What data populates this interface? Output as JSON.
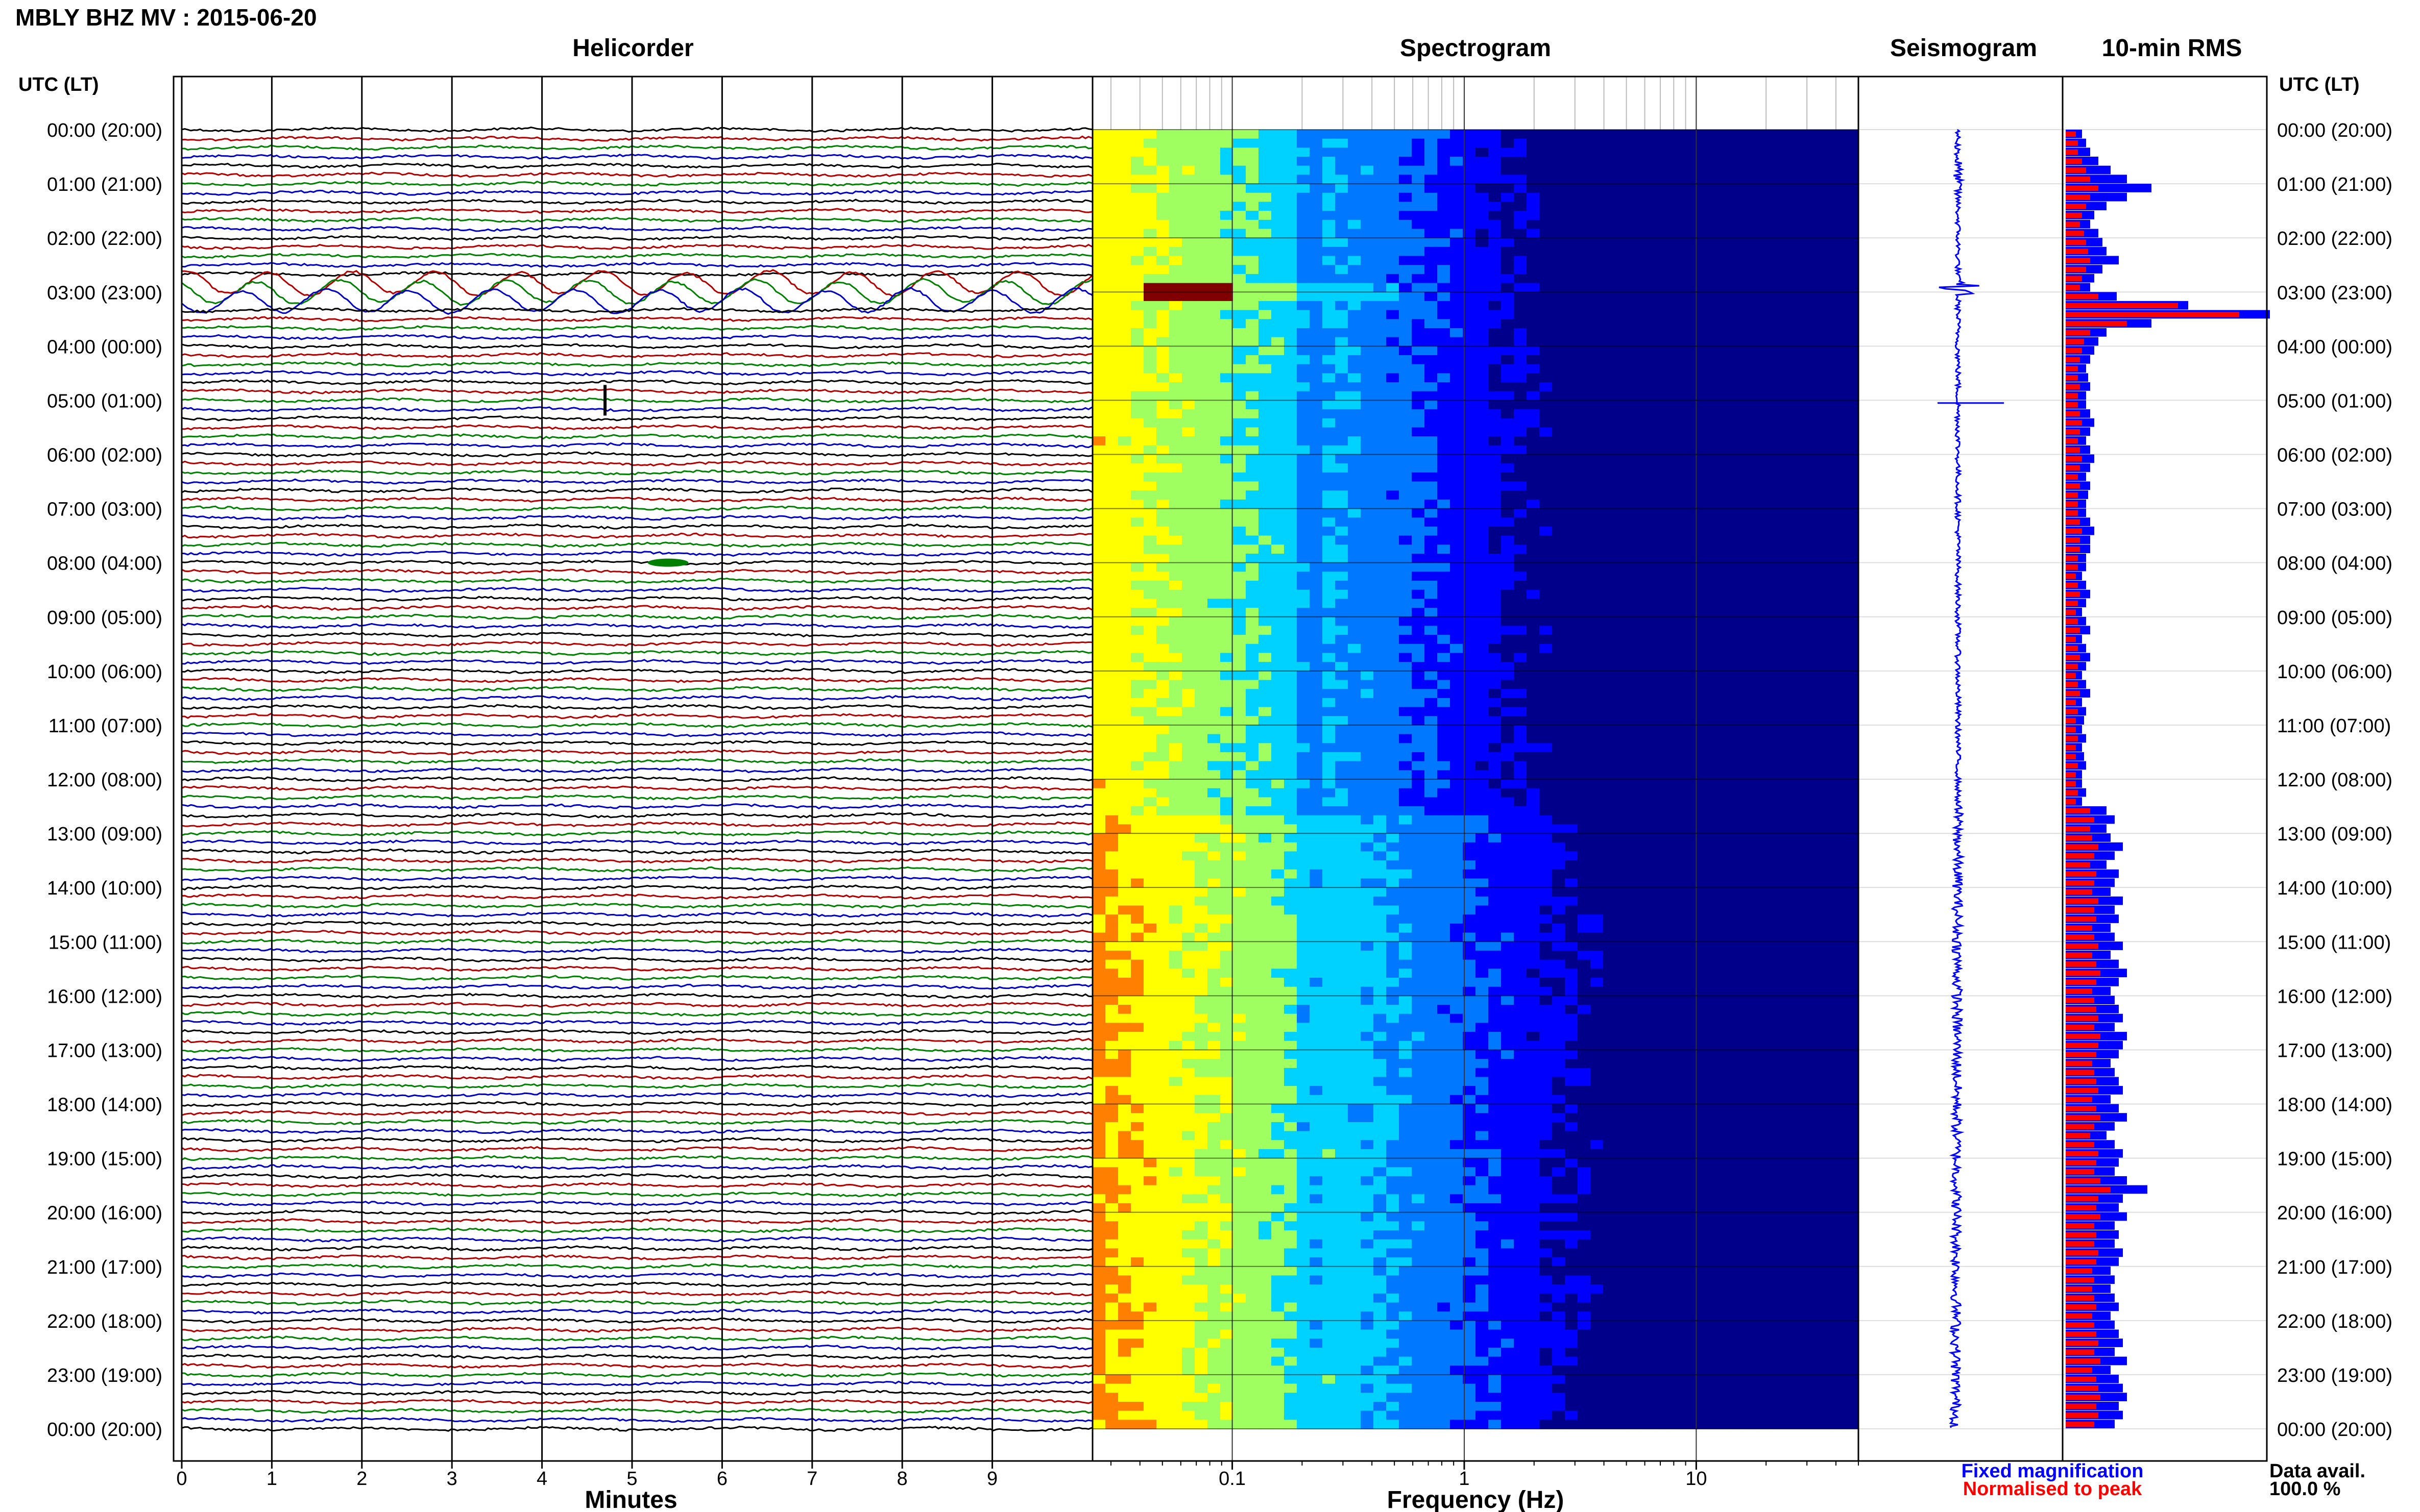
{
  "header": {
    "station_title": "MBLY BHZ MV : 2015-06-20"
  },
  "panels": {
    "helicorder": "Helicorder",
    "spectrogram": "Spectrogram",
    "seismogram": "Seismogram",
    "rms": "10-min RMS"
  },
  "axis": {
    "left_header": "UTC (LT)",
    "right_header": "UTC (LT)",
    "helicorder_xlabel": "Minutes",
    "spectrogram_xlabel": "Frequency (Hz)"
  },
  "legend": {
    "fixed": "Fixed magnification",
    "normalised": "Normalised to peak",
    "fixed_color": "#0000ff",
    "normalised_color": "#ff0000"
  },
  "data_avail": {
    "label": "Data avail.",
    "value": "100.0 %"
  },
  "colors": {
    "trace_cycle": [
      "#000000",
      "#b00000",
      "#008000",
      "#0000c0"
    ],
    "spectrogram_colormap": [
      "#00008b",
      "#0000ff",
      "#0078ff",
      "#00d2ff",
      "#a0ff60",
      "#ffff00",
      "#ff8000",
      "#ff0000",
      "#800000"
    ]
  },
  "chart_data": {
    "type": "heatmap",
    "title": "MBLY BHZ MV : 2015-06-20",
    "time_rows": {
      "utc": [
        "00:00",
        "01:00",
        "02:00",
        "03:00",
        "04:00",
        "05:00",
        "06:00",
        "07:00",
        "08:00",
        "09:00",
        "10:00",
        "11:00",
        "12:00",
        "13:00",
        "14:00",
        "15:00",
        "16:00",
        "17:00",
        "18:00",
        "19:00",
        "20:00",
        "21:00",
        "22:00",
        "23:00",
        "00:00"
      ],
      "lt": [
        "(20:00)",
        "(21:00)",
        "(22:00)",
        "(23:00)",
        "(00:00)",
        "(01:00)",
        "(02:00)",
        "(03:00)",
        "(04:00)",
        "(05:00)",
        "(06:00)",
        "(07:00)",
        "(08:00)",
        "(09:00)",
        "(10:00)",
        "(11:00)",
        "(12:00)",
        "(13:00)",
        "(14:00)",
        "(15:00)",
        "(16:00)",
        "(17:00)",
        "(18:00)",
        "(19:00)",
        "(20:00)"
      ]
    },
    "helicorder": {
      "xlabel": "Minutes",
      "xlim": [
        0,
        10
      ],
      "ticks": [
        "0",
        "1",
        "2",
        "3",
        "4",
        "5",
        "6",
        "7",
        "8",
        "9"
      ],
      "lines_per_hour": 6,
      "events": [
        {
          "time_utc": "02:50-03:10",
          "minute_range": [
            0,
            10
          ],
          "description_on_plot": "large long-period oscillation"
        },
        {
          "time_utc": "04:50",
          "minute": 4.7
        },
        {
          "time_utc": "07:50",
          "minute": 5.4
        }
      ]
    },
    "spectrogram": {
      "xlabel": "Frequency (Hz)",
      "xscale": "log",
      "xlim": [
        0.025,
        50
      ],
      "ticks": [
        "0.1",
        "1",
        "10"
      ],
      "peak_energy": {
        "time_utc": "02:50-03:00",
        "frequency_hz": [
          0.04,
          0.1
        ]
      }
    },
    "rms": {
      "title": "10-min RMS",
      "series": [
        {
          "name": "Fixed magnification",
          "color": "#0000ff",
          "values": [
            0.08,
            0.1,
            0.12,
            0.16,
            0.22,
            0.3,
            0.42,
            0.3,
            0.2,
            0.14,
            0.12,
            0.16,
            0.18,
            0.2,
            0.26,
            0.18,
            0.14,
            0.12,
            0.25,
            0.6,
            1.0,
            0.42,
            0.2,
            0.16,
            0.14,
            0.12,
            0.1,
            0.11,
            0.12,
            0.1,
            0.1,
            0.12,
            0.14,
            0.12,
            0.1,
            0.12,
            0.14,
            0.12,
            0.1,
            0.12,
            0.11,
            0.1,
            0.1,
            0.12,
            0.14,
            0.12,
            0.12,
            0.1,
            0.1,
            0.08,
            0.1,
            0.12,
            0.1,
            0.08,
            0.1,
            0.12,
            0.08,
            0.1,
            0.12,
            0.1,
            0.08,
            0.1,
            0.12,
            0.08,
            0.1,
            0.09,
            0.08,
            0.1,
            0.08,
            0.09,
            0.1,
            0.08,
            0.08,
            0.1,
            0.08,
            0.2,
            0.24,
            0.2,
            0.22,
            0.28,
            0.24,
            0.2,
            0.26,
            0.24,
            0.22,
            0.28,
            0.24,
            0.26,
            0.22,
            0.24,
            0.28,
            0.22,
            0.26,
            0.3,
            0.26,
            0.22,
            0.24,
            0.26,
            0.28,
            0.24,
            0.3,
            0.28,
            0.26,
            0.22,
            0.24,
            0.26,
            0.28,
            0.22,
            0.26,
            0.3,
            0.24,
            0.2,
            0.24,
            0.28,
            0.26,
            0.24,
            0.3,
            0.4,
            0.28,
            0.26,
            0.3,
            0.24,
            0.26,
            0.24,
            0.28,
            0.26,
            0.22,
            0.24,
            0.22,
            0.24,
            0.26,
            0.22,
            0.24,
            0.26,
            0.28,
            0.24,
            0.3,
            0.22,
            0.26,
            0.28,
            0.3,
            0.26,
            0.28,
            0.24
          ]
        },
        {
          "name": "Normalised to peak",
          "color": "#ff0000",
          "values": [
            0.05,
            0.06,
            0.06,
            0.08,
            0.1,
            0.12,
            0.16,
            0.12,
            0.1,
            0.08,
            0.07,
            0.09,
            0.1,
            0.11,
            0.12,
            0.1,
            0.08,
            0.07,
            0.16,
            0.55,
            0.85,
            0.3,
            0.12,
            0.09,
            0.08,
            0.07,
            0.06,
            0.06,
            0.07,
            0.06,
            0.06,
            0.07,
            0.08,
            0.07,
            0.06,
            0.07,
            0.08,
            0.07,
            0.06,
            0.07,
            0.06,
            0.06,
            0.06,
            0.07,
            0.08,
            0.07,
            0.07,
            0.06,
            0.06,
            0.05,
            0.06,
            0.07,
            0.06,
            0.05,
            0.06,
            0.07,
            0.05,
            0.06,
            0.07,
            0.06,
            0.05,
            0.06,
            0.07,
            0.05,
            0.06,
            0.05,
            0.05,
            0.06,
            0.05,
            0.05,
            0.06,
            0.05,
            0.05,
            0.06,
            0.05,
            0.12,
            0.14,
            0.12,
            0.13,
            0.16,
            0.14,
            0.12,
            0.15,
            0.14,
            0.13,
            0.16,
            0.14,
            0.15,
            0.13,
            0.14,
            0.16,
            0.13,
            0.15,
            0.17,
            0.15,
            0.13,
            0.14,
            0.15,
            0.16,
            0.14,
            0.17,
            0.16,
            0.15,
            0.13,
            0.14,
            0.15,
            0.16,
            0.13,
            0.15,
            0.17,
            0.14,
            0.12,
            0.14,
            0.16,
            0.15,
            0.14,
            0.17,
            0.22,
            0.16,
            0.15,
            0.17,
            0.14,
            0.15,
            0.14,
            0.16,
            0.15,
            0.13,
            0.14,
            0.13,
            0.14,
            0.15,
            0.13,
            0.14,
            0.15,
            0.16,
            0.14,
            0.17,
            0.13,
            0.15,
            0.16,
            0.17,
            0.15,
            0.16,
            0.14
          ]
        }
      ]
    },
    "data_availability": "100.0 %"
  }
}
